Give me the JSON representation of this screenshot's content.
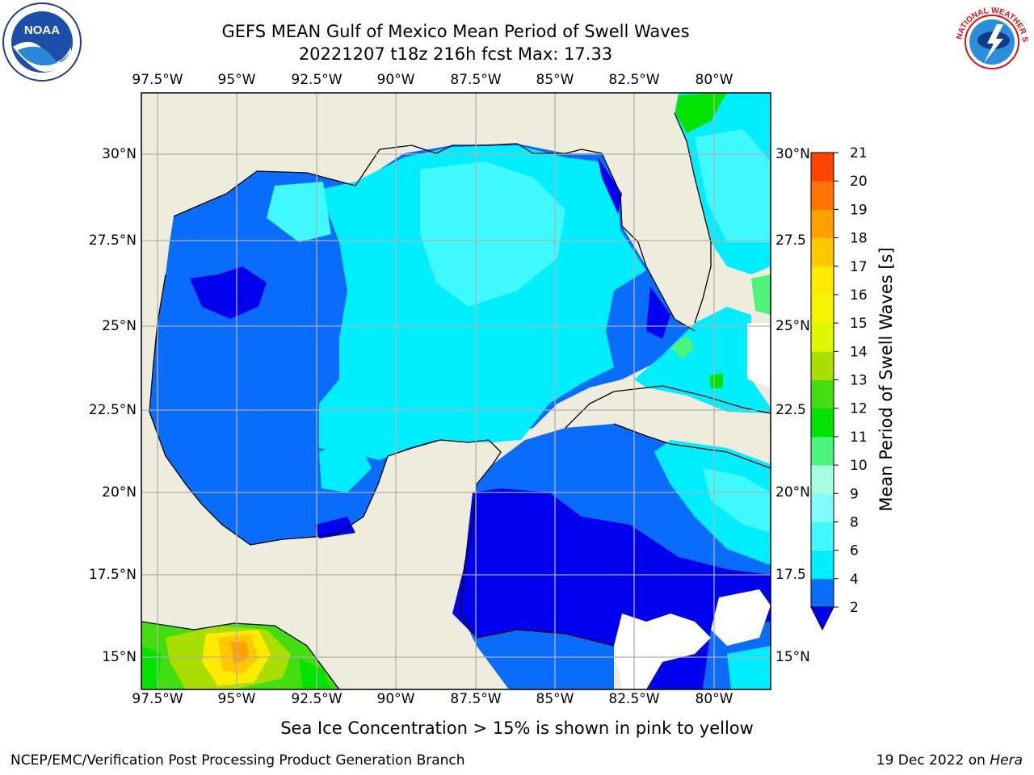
{
  "title": {
    "line1": "GEFS MEAN Gulf of Mexico Mean Period of Swell Waves",
    "line2": "20221207 t18z 216h fcst   Max: 17.33"
  },
  "logos": {
    "noaa_text": "NOAA",
    "nws_text": "NATIONAL WEATHER SERVICE"
  },
  "map": {
    "lon_labels": [
      "97.5°W",
      "95°W",
      "92.5°W",
      "90°W",
      "87.5°W",
      "85°W",
      "82.5°W",
      "80°W"
    ],
    "lat_labels": [
      "30°N",
      "27.5°N",
      "25°N",
      "22.5°N",
      "20°N",
      "17.5°N",
      "15°N"
    ],
    "right_lat_labels": [
      "30°N",
      "27.5",
      "25°N",
      "22.5",
      "20°N",
      "17.5",
      "15°N"
    ],
    "land_color": "#eeecdc",
    "grid_color": "#b0b0b0"
  },
  "colorbar": {
    "label": "Mean Period of Swell Waves [s]",
    "ticks": [
      "2",
      "4",
      "6",
      "8",
      "9",
      "10",
      "11",
      "12",
      "13",
      "14",
      "15",
      "16",
      "17",
      "18",
      "19",
      "20",
      "21"
    ],
    "colors": [
      "#0a6cfb",
      "#00eeff",
      "#40f9ff",
      "#82fbff",
      "#a6fde0",
      "#4cf47a",
      "#02e400",
      "#44dd10",
      "#aadd00",
      "#dff800",
      "#f5f300",
      "#ffea00",
      "#ffc800",
      "#ff9f00",
      "#ff7400",
      "#ff4400",
      "#ff0000"
    ],
    "extend_color": "#0000ee"
  },
  "footer": {
    "note": "Sea Ice Concentration > 15% is shown in pink to yellow",
    "credit": "NCEP/EMC/Verification Post Processing Product Generation Branch",
    "date": "19 Dec 2022 on",
    "host": "Hera"
  }
}
